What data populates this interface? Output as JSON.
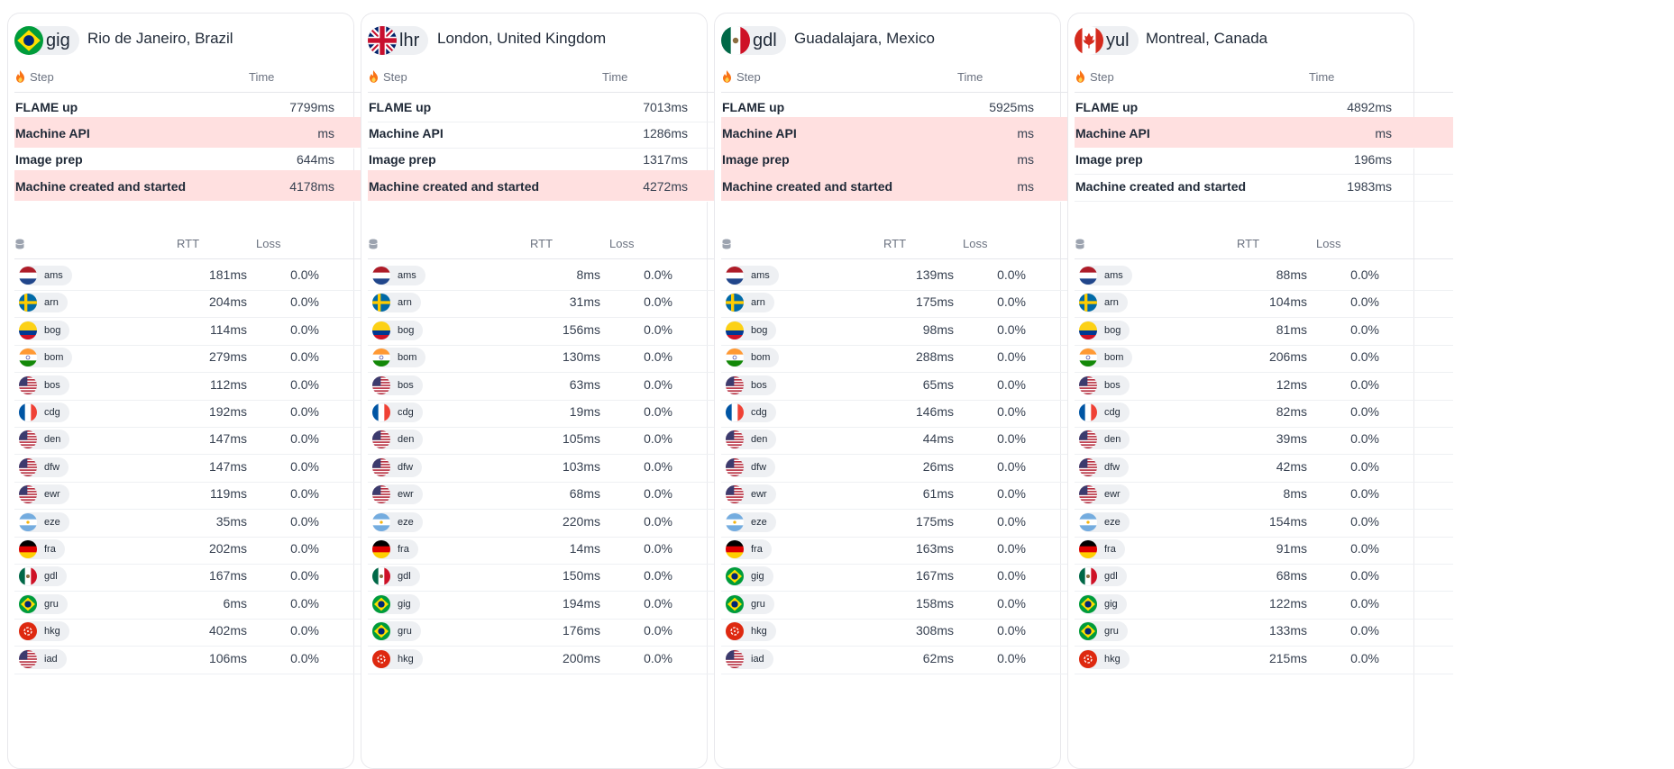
{
  "headers": {
    "step": "Step",
    "time": "Time",
    "rtt": "RTT",
    "loss": "Loss"
  },
  "colors": {
    "failed_row": "#ffe0e0",
    "pill_bg": "#eef0f3"
  },
  "cards": [
    {
      "code": "gig",
      "flag": "br",
      "city": "Rio de Janeiro, Brazil",
      "steps": [
        {
          "name": "FLAME up",
          "time": "7799ms",
          "failed": false
        },
        {
          "name": "Machine API",
          "time": "ms",
          "failed": true
        },
        {
          "name": "Image prep",
          "time": "644ms",
          "failed": false
        },
        {
          "name": "Machine created and started",
          "time": "4178ms",
          "failed": true
        }
      ],
      "pings": [
        {
          "code": "ams",
          "flag": "nl",
          "rtt": "181ms",
          "loss": "0.0%"
        },
        {
          "code": "arn",
          "flag": "se",
          "rtt": "204ms",
          "loss": "0.0%"
        },
        {
          "code": "bog",
          "flag": "co",
          "rtt": "114ms",
          "loss": "0.0%"
        },
        {
          "code": "bom",
          "flag": "in",
          "rtt": "279ms",
          "loss": "0.0%"
        },
        {
          "code": "bos",
          "flag": "us",
          "rtt": "112ms",
          "loss": "0.0%"
        },
        {
          "code": "cdg",
          "flag": "fr",
          "rtt": "192ms",
          "loss": "0.0%"
        },
        {
          "code": "den",
          "flag": "us",
          "rtt": "147ms",
          "loss": "0.0%"
        },
        {
          "code": "dfw",
          "flag": "us",
          "rtt": "147ms",
          "loss": "0.0%"
        },
        {
          "code": "ewr",
          "flag": "us",
          "rtt": "119ms",
          "loss": "0.0%"
        },
        {
          "code": "eze",
          "flag": "ar",
          "rtt": "35ms",
          "loss": "0.0%"
        },
        {
          "code": "fra",
          "flag": "de",
          "rtt": "202ms",
          "loss": "0.0%"
        },
        {
          "code": "gdl",
          "flag": "mx",
          "rtt": "167ms",
          "loss": "0.0%"
        },
        {
          "code": "gru",
          "flag": "br",
          "rtt": "6ms",
          "loss": "0.0%"
        },
        {
          "code": "hkg",
          "flag": "hk",
          "rtt": "402ms",
          "loss": "0.0%"
        },
        {
          "code": "iad",
          "flag": "us",
          "rtt": "106ms",
          "loss": "0.0%"
        }
      ]
    },
    {
      "code": "lhr",
      "flag": "gb",
      "city": "London, United Kingdom",
      "steps": [
        {
          "name": "FLAME up",
          "time": "7013ms",
          "failed": false
        },
        {
          "name": "Machine API",
          "time": "1286ms",
          "failed": false
        },
        {
          "name": "Image prep",
          "time": "1317ms",
          "failed": false
        },
        {
          "name": "Machine created and started",
          "time": "4272ms",
          "failed": true
        }
      ],
      "pings": [
        {
          "code": "ams",
          "flag": "nl",
          "rtt": "8ms",
          "loss": "0.0%"
        },
        {
          "code": "arn",
          "flag": "se",
          "rtt": "31ms",
          "loss": "0.0%"
        },
        {
          "code": "bog",
          "flag": "co",
          "rtt": "156ms",
          "loss": "0.0%"
        },
        {
          "code": "bom",
          "flag": "in",
          "rtt": "130ms",
          "loss": "0.0%"
        },
        {
          "code": "bos",
          "flag": "us",
          "rtt": "63ms",
          "loss": "0.0%"
        },
        {
          "code": "cdg",
          "flag": "fr",
          "rtt": "19ms",
          "loss": "0.0%"
        },
        {
          "code": "den",
          "flag": "us",
          "rtt": "105ms",
          "loss": "0.0%"
        },
        {
          "code": "dfw",
          "flag": "us",
          "rtt": "103ms",
          "loss": "0.0%"
        },
        {
          "code": "ewr",
          "flag": "us",
          "rtt": "68ms",
          "loss": "0.0%"
        },
        {
          "code": "eze",
          "flag": "ar",
          "rtt": "220ms",
          "loss": "0.0%"
        },
        {
          "code": "fra",
          "flag": "de",
          "rtt": "14ms",
          "loss": "0.0%"
        },
        {
          "code": "gdl",
          "flag": "mx",
          "rtt": "150ms",
          "loss": "0.0%"
        },
        {
          "code": "gig",
          "flag": "br",
          "rtt": "194ms",
          "loss": "0.0%"
        },
        {
          "code": "gru",
          "flag": "br",
          "rtt": "176ms",
          "loss": "0.0%"
        },
        {
          "code": "hkg",
          "flag": "hk",
          "rtt": "200ms",
          "loss": "0.0%"
        }
      ]
    },
    {
      "code": "gdl",
      "flag": "mx",
      "city": "Guadalajara, Mexico",
      "steps": [
        {
          "name": "FLAME up",
          "time": "5925ms",
          "failed": false
        },
        {
          "name": "Machine API",
          "time": "ms",
          "failed": true
        },
        {
          "name": "Image prep",
          "time": "ms",
          "failed": true
        },
        {
          "name": "Machine created and started",
          "time": "ms",
          "failed": true
        }
      ],
      "pings": [
        {
          "code": "ams",
          "flag": "nl",
          "rtt": "139ms",
          "loss": "0.0%"
        },
        {
          "code": "arn",
          "flag": "se",
          "rtt": "175ms",
          "loss": "0.0%"
        },
        {
          "code": "bog",
          "flag": "co",
          "rtt": "98ms",
          "loss": "0.0%"
        },
        {
          "code": "bom",
          "flag": "in",
          "rtt": "288ms",
          "loss": "0.0%"
        },
        {
          "code": "bos",
          "flag": "us",
          "rtt": "65ms",
          "loss": "0.0%"
        },
        {
          "code": "cdg",
          "flag": "fr",
          "rtt": "146ms",
          "loss": "0.0%"
        },
        {
          "code": "den",
          "flag": "us",
          "rtt": "44ms",
          "loss": "0.0%"
        },
        {
          "code": "dfw",
          "flag": "us",
          "rtt": "26ms",
          "loss": "0.0%"
        },
        {
          "code": "ewr",
          "flag": "us",
          "rtt": "61ms",
          "loss": "0.0%"
        },
        {
          "code": "eze",
          "flag": "ar",
          "rtt": "175ms",
          "loss": "0.0%"
        },
        {
          "code": "fra",
          "flag": "de",
          "rtt": "163ms",
          "loss": "0.0%"
        },
        {
          "code": "gig",
          "flag": "br",
          "rtt": "167ms",
          "loss": "0.0%"
        },
        {
          "code": "gru",
          "flag": "br",
          "rtt": "158ms",
          "loss": "0.0%"
        },
        {
          "code": "hkg",
          "flag": "hk",
          "rtt": "308ms",
          "loss": "0.0%"
        },
        {
          "code": "iad",
          "flag": "us",
          "rtt": "62ms",
          "loss": "0.0%"
        }
      ]
    },
    {
      "code": "yul",
      "flag": "ca",
      "city": "Montreal, Canada",
      "steps": [
        {
          "name": "FLAME up",
          "time": "4892ms",
          "failed": false
        },
        {
          "name": "Machine API",
          "time": "ms",
          "failed": true
        },
        {
          "name": "Image prep",
          "time": "196ms",
          "failed": false
        },
        {
          "name": "Machine created and started",
          "time": "1983ms",
          "failed": false
        }
      ],
      "pings": [
        {
          "code": "ams",
          "flag": "nl",
          "rtt": "88ms",
          "loss": "0.0%"
        },
        {
          "code": "arn",
          "flag": "se",
          "rtt": "104ms",
          "loss": "0.0%"
        },
        {
          "code": "bog",
          "flag": "co",
          "rtt": "81ms",
          "loss": "0.0%"
        },
        {
          "code": "bom",
          "flag": "in",
          "rtt": "206ms",
          "loss": "0.0%"
        },
        {
          "code": "bos",
          "flag": "us",
          "rtt": "12ms",
          "loss": "0.0%"
        },
        {
          "code": "cdg",
          "flag": "fr",
          "rtt": "82ms",
          "loss": "0.0%"
        },
        {
          "code": "den",
          "flag": "us",
          "rtt": "39ms",
          "loss": "0.0%"
        },
        {
          "code": "dfw",
          "flag": "us",
          "rtt": "42ms",
          "loss": "0.0%"
        },
        {
          "code": "ewr",
          "flag": "us",
          "rtt": "8ms",
          "loss": "0.0%"
        },
        {
          "code": "eze",
          "flag": "ar",
          "rtt": "154ms",
          "loss": "0.0%"
        },
        {
          "code": "fra",
          "flag": "de",
          "rtt": "91ms",
          "loss": "0.0%"
        },
        {
          "code": "gdl",
          "flag": "mx",
          "rtt": "68ms",
          "loss": "0.0%"
        },
        {
          "code": "gig",
          "flag": "br",
          "rtt": "122ms",
          "loss": "0.0%"
        },
        {
          "code": "gru",
          "flag": "br",
          "rtt": "133ms",
          "loss": "0.0%"
        },
        {
          "code": "hkg",
          "flag": "hk",
          "rtt": "215ms",
          "loss": "0.0%"
        }
      ]
    }
  ]
}
